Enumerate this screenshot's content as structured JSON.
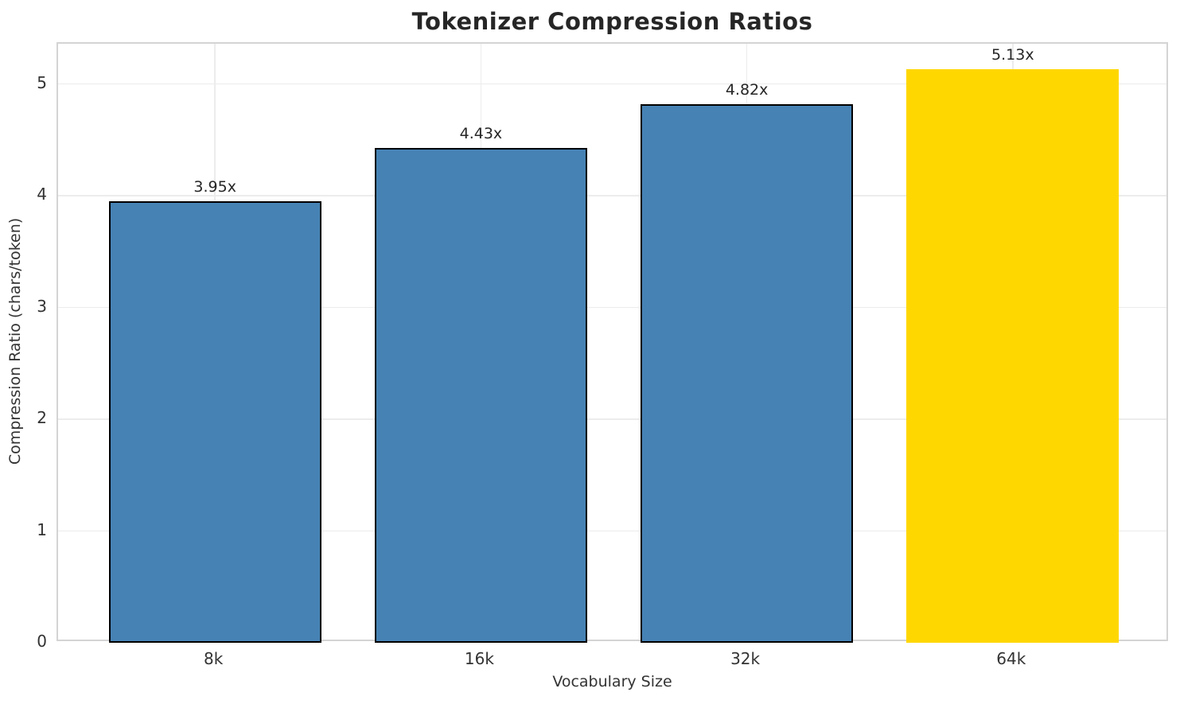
{
  "chart_data": {
    "type": "bar",
    "title": "Tokenizer Compression Ratios",
    "xlabel": "Vocabulary Size",
    "ylabel": "Compression Ratio (chars/token)",
    "categories": [
      "8k",
      "16k",
      "32k",
      "64k"
    ],
    "values": [
      3.95,
      4.43,
      4.82,
      5.13
    ],
    "value_labels": [
      "3.95x",
      "4.43x",
      "4.82x",
      "5.13x"
    ],
    "yticks": [
      0,
      1,
      2,
      3,
      4,
      5
    ],
    "ylim": [
      0,
      5.36
    ],
    "grid": true,
    "legend": "none",
    "colors": {
      "bar_fill": "#4682B4",
      "bar_edge": "#000000",
      "highlight_fill": "#FFD700",
      "highlight_edge": "#FFD700",
      "grid_color": "#ececec",
      "spine_color": "#d4d4d4",
      "text_color": "#262626"
    },
    "highlight_index": 3
  }
}
